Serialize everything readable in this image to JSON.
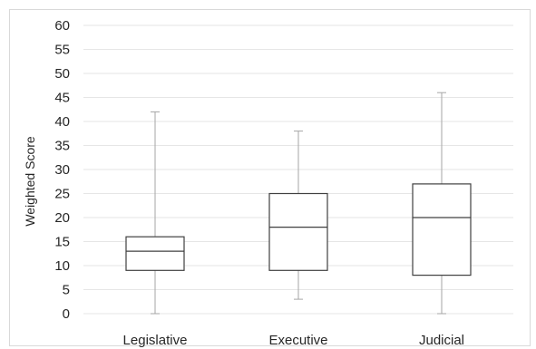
{
  "chart_data": {
    "type": "box",
    "title": "",
    "xlabel": "",
    "ylabel": "Weighted Score",
    "ylim": [
      0,
      60
    ],
    "yticks": [
      0,
      5,
      10,
      15,
      20,
      25,
      30,
      35,
      40,
      45,
      50,
      55,
      60
    ],
    "grid": true,
    "legend": "none",
    "categories": [
      "Legislative",
      "Executive",
      "Judicial"
    ],
    "boxes": [
      {
        "category": "Legislative",
        "min": 0,
        "q1": 9,
        "median": 13,
        "q3": 16,
        "max": 42
      },
      {
        "category": "Executive",
        "min": 3,
        "q1": 9,
        "median": 18,
        "q3": 25,
        "max": 38
      },
      {
        "category": "Judicial",
        "min": 0,
        "q1": 8,
        "median": 20,
        "q3": 27,
        "max": 46
      }
    ],
    "colors": {
      "box_stroke": "#404040",
      "whisker": "#a6a6a6",
      "grid": "#e6e6e6",
      "box_fill": "#ffffff"
    }
  }
}
